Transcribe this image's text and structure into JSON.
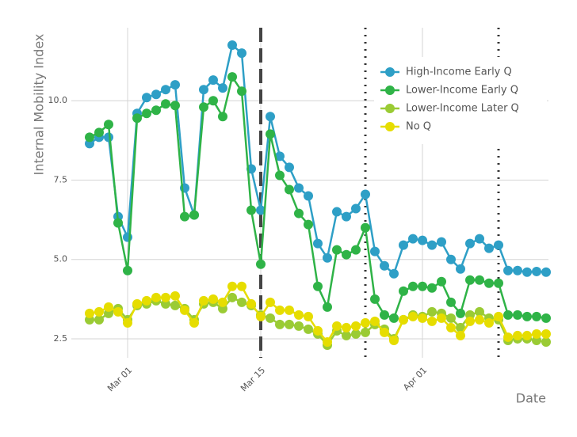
{
  "chart_data": {
    "type": "line",
    "y_label": "Internal Mobility Index",
    "x_label": "Date",
    "x": [
      "Feb 26",
      "Feb 27",
      "Feb 28",
      "Feb 29",
      "Mar 01",
      "Mar 02",
      "Mar 03",
      "Mar 04",
      "Mar 05",
      "Mar 06",
      "Mar 07",
      "Mar 08",
      "Mar 09",
      "Mar 10",
      "Mar 11",
      "Mar 12",
      "Mar 13",
      "Mar 14",
      "Mar 15",
      "Mar 16",
      "Mar 17",
      "Mar 18",
      "Mar 19",
      "Mar 20",
      "Mar 21",
      "Mar 22",
      "Mar 23",
      "Mar 24",
      "Mar 25",
      "Mar 26",
      "Mar 27",
      "Mar 28",
      "Mar 29",
      "Mar 30",
      "Mar 31",
      "Apr 01",
      "Apr 02",
      "Apr 03",
      "Apr 04",
      "Apr 05",
      "Apr 06",
      "Apr 07",
      "Apr 08",
      "Apr 09",
      "Apr 10",
      "Apr 11",
      "Apr 12",
      "Apr 13",
      "Apr 14"
    ],
    "series": [
      {
        "name": "High-Income Early Q",
        "color": "#2e9fc6",
        "values": [
          8.65,
          8.85,
          8.85,
          6.35,
          5.7,
          9.6,
          10.1,
          10.2,
          10.35,
          10.5,
          7.25,
          6.4,
          10.35,
          10.65,
          10.4,
          11.75,
          11.5,
          7.85,
          6.55,
          9.5,
          8.25,
          7.9,
          7.25,
          7.0,
          5.5,
          5.05,
          6.5,
          6.35,
          6.6,
          7.05,
          5.25,
          4.8,
          4.55,
          5.45,
          5.65,
          5.6,
          5.45,
          5.55,
          5.0,
          4.7,
          5.5,
          5.65,
          5.35,
          5.45,
          4.65,
          4.65,
          4.6,
          4.62,
          4.6
        ]
      },
      {
        "name": "Lower-Income Early Q",
        "color": "#2fb347",
        "values": [
          8.85,
          9.0,
          9.25,
          6.15,
          4.65,
          9.45,
          9.6,
          9.7,
          9.9,
          9.85,
          6.35,
          6.4,
          9.8,
          10.0,
          9.5,
          10.75,
          10.3,
          6.55,
          4.85,
          8.95,
          7.65,
          7.2,
          6.45,
          6.1,
          4.15,
          3.5,
          5.3,
          5.15,
          5.3,
          6.0,
          3.75,
          3.25,
          3.15,
          4.0,
          4.15,
          4.15,
          4.1,
          4.3,
          3.65,
          3.3,
          4.35,
          4.35,
          4.25,
          4.25,
          3.25,
          3.25,
          3.2,
          3.2,
          3.15
        ]
      },
      {
        "name": "Lower-Income Later Q",
        "color": "#9acb34",
        "values": [
          3.1,
          3.1,
          3.3,
          3.45,
          3.1,
          3.55,
          3.6,
          3.7,
          3.6,
          3.55,
          3.45,
          3.1,
          3.6,
          3.65,
          3.45,
          3.8,
          3.65,
          3.55,
          3.25,
          3.15,
          2.95,
          2.95,
          2.9,
          2.8,
          2.65,
          2.3,
          2.75,
          2.6,
          2.65,
          2.7,
          2.95,
          2.8,
          2.5,
          3.1,
          3.25,
          3.2,
          3.35,
          3.3,
          3.15,
          2.85,
          3.25,
          3.35,
          3.15,
          3.1,
          2.45,
          2.5,
          2.5,
          2.45,
          2.4
        ]
      },
      {
        "name": "No Q",
        "color": "#e6dd00",
        "values": [
          3.3,
          3.35,
          3.5,
          3.35,
          3.0,
          3.6,
          3.7,
          3.8,
          3.8,
          3.85,
          3.4,
          3.0,
          3.7,
          3.75,
          3.65,
          4.15,
          4.15,
          3.6,
          3.2,
          3.65,
          3.4,
          3.4,
          3.25,
          3.2,
          2.75,
          2.4,
          2.9,
          2.85,
          2.9,
          3.0,
          3.05,
          2.7,
          2.45,
          3.1,
          3.2,
          3.15,
          3.05,
          3.15,
          2.85,
          2.6,
          3.05,
          3.1,
          3.0,
          3.2,
          2.55,
          2.6,
          2.6,
          2.65,
          2.65
        ]
      }
    ],
    "xticks": [
      "Mar 01",
      "Mar 15",
      "Apr 01"
    ],
    "ylim": [
      1.9,
      12.3
    ],
    "yticks": [
      2.5,
      {
        "value": 5,
        "label": "5.0"
      },
      7.5,
      {
        "value": 10,
        "label": "10.0"
      }
    ],
    "vlines": [
      {
        "x": "Mar 15",
        "style": "dashed"
      },
      {
        "x": "Mar 26",
        "style": "dotted"
      },
      {
        "x": "Apr 09",
        "style": "dotted"
      }
    ],
    "grid": true,
    "legend": "top-right"
  }
}
